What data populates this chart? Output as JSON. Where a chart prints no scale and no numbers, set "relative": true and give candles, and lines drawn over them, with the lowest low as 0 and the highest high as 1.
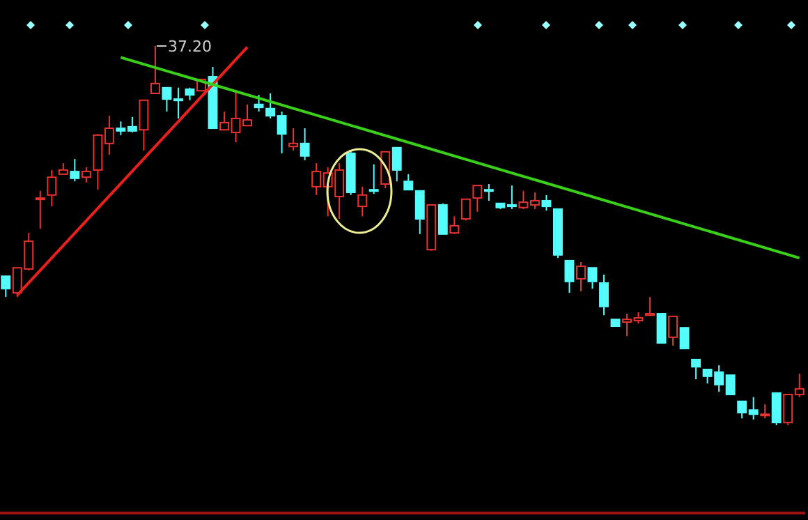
{
  "chart_data": {
    "type": "candlestick",
    "relative": true,
    "categories": [
      null,
      null,
      null,
      null,
      null,
      null,
      null,
      null,
      null,
      null,
      null,
      null,
      null,
      null,
      null,
      null,
      null,
      null,
      null,
      null,
      null,
      null,
      null,
      null,
      null,
      null,
      null,
      null,
      null,
      null,
      null,
      null,
      null,
      null,
      null,
      null,
      null,
      null,
      null,
      null,
      null,
      null,
      null,
      null,
      null,
      null,
      null,
      null,
      null,
      null,
      null,
      null,
      null,
      null,
      null,
      null,
      null,
      null,
      null,
      null,
      null,
      null,
      null,
      null,
      null,
      null,
      null,
      null,
      null,
      null
    ],
    "ohlc": [
      [
        0.393,
        0.393,
        0.338,
        0.36
      ],
      [
        0.349,
        0.415,
        0.338,
        0.415
      ],
      [
        0.412,
        0.507,
        0.408,
        0.485
      ],
      [
        0.596,
        0.618,
        0.518,
        0.599
      ],
      [
        0.607,
        0.673,
        0.577,
        0.654
      ],
      [
        0.662,
        0.691,
        0.662,
        0.673
      ],
      [
        0.669,
        0.702,
        0.643,
        0.651
      ],
      [
        0.654,
        0.68,
        0.64,
        0.669
      ],
      [
        0.673,
        0.768,
        0.621,
        0.765
      ],
      [
        0.743,
        0.816,
        0.713,
        0.783
      ],
      [
        0.783,
        0.801,
        0.765,
        0.776
      ],
      [
        0.787,
        0.813,
        0.772,
        0.776
      ],
      [
        0.779,
        0.857,
        0.724,
        0.857
      ],
      [
        0.875,
        1,
        0.875,
        0.901
      ],
      [
        0.89,
        0.89,
        0.827,
        0.86
      ],
      [
        0.86,
        0.89,
        0.809,
        0.857
      ],
      [
        0.886,
        0.89,
        0.857,
        0.871
      ],
      [
        0.882,
        0.912,
        0.882,
        0.912
      ],
      [
        0.919,
        0.945,
        0.783,
        0.783
      ],
      [
        0.779,
        0.827,
        0.779,
        0.798
      ],
      [
        0.772,
        0.882,
        0.746,
        0.809
      ],
      [
        0.79,
        0.846,
        0.79,
        0.805
      ],
      [
        0.846,
        0.871,
        0.827,
        0.838
      ],
      [
        0.835,
        0.875,
        0.809,
        0.816
      ],
      [
        0.816,
        0.827,
        0.717,
        0.768
      ],
      [
        0.735,
        0.783,
        0.724,
        0.743
      ],
      [
        0.743,
        0.783,
        0.699,
        0.71
      ],
      [
        0.629,
        0.691,
        0.607,
        0.669
      ],
      [
        0.629,
        0.68,
        0.551,
        0.665
      ],
      [
        0.603,
        0.691,
        0.544,
        0.673
      ],
      [
        0.717,
        0.724,
        0.607,
        0.614
      ],
      [
        0.577,
        0.629,
        0.551,
        0.607
      ],
      [
        0.621,
        0.688,
        0.61,
        0.618
      ],
      [
        0.636,
        0.721,
        0.625,
        0.721
      ],
      [
        0.732,
        0.732,
        0.643,
        0.673
      ],
      [
        0.643,
        0.662,
        0.621,
        0.621
      ],
      [
        0.618,
        0.618,
        0.504,
        0.544
      ],
      [
        0.463,
        0.581,
        0.46,
        0.581
      ],
      [
        0.581,
        0.585,
        0.504,
        0.504
      ],
      [
        0.507,
        0.551,
        0.504,
        0.526
      ],
      [
        0.544,
        0.596,
        0.54,
        0.596
      ],
      [
        0.599,
        0.632,
        0.563,
        0.632
      ],
      [
        0.621,
        0.636,
        0.592,
        0.618
      ],
      [
        0.585,
        0.585,
        0.57,
        0.574
      ],
      [
        0.581,
        0.632,
        0.57,
        0.577
      ],
      [
        0.574,
        0.618,
        0.57,
        0.588
      ],
      [
        0.581,
        0.614,
        0.57,
        0.592
      ],
      [
        0.592,
        0.607,
        0.566,
        0.577
      ],
      [
        0.57,
        0.57,
        0.441,
        0.449
      ],
      [
        0.434,
        0.434,
        0.349,
        0.379
      ],
      [
        0.386,
        0.43,
        0.353,
        0.419
      ],
      [
        0.415,
        0.415,
        0.36,
        0.379
      ],
      [
        0.375,
        0.397,
        0.29,
        0.313
      ],
      [
        0.279,
        0.279,
        0.261,
        0.261
      ],
      [
        0.272,
        0.294,
        0.235,
        0.279
      ],
      [
        0.276,
        0.298,
        0.268,
        0.283
      ],
      [
        0.29,
        0.338,
        0.29,
        0.294
      ],
      [
        0.294,
        0.294,
        0.217,
        0.217
      ],
      [
        0.232,
        0.287,
        0.21,
        0.287
      ],
      [
        0.257,
        0.257,
        0.202,
        0.202
      ],
      [
        0.173,
        0.173,
        0.121,
        0.154
      ],
      [
        0.147,
        0.147,
        0.11,
        0.129
      ],
      [
        0.14,
        0.158,
        0.088,
        0.107
      ],
      [
        0.132,
        0.132,
        0.081,
        0.081
      ],
      [
        0.063,
        0.063,
        0.018,
        0.033
      ],
      [
        0.04,
        0.074,
        0.015,
        0.029
      ],
      [
        0.026,
        0.055,
        0.018,
        0.029
      ],
      [
        0.085,
        0.085,
        0,
        0.007
      ],
      [
        0.007,
        0.081,
        0,
        0.081
      ],
      [
        0.081,
        0.136,
        0.074,
        0.096
      ]
    ],
    "colors": [
      "#54fcfc",
      "#e8322e",
      "#e8322e",
      "#e8322e",
      "#e8322e",
      "#e8322e",
      "#54fcfc",
      "#e8322e",
      "#e8322e",
      "#e8322e",
      "#54fcfc",
      "#54fcfc",
      "#e8322e",
      "#e8322e",
      "#54fcfc",
      "#54fcfc",
      "#54fcfc",
      "#e8322e",
      "#54fcfc",
      "#e8322e",
      "#e8322e",
      "#e8322e",
      "#54fcfc",
      "#54fcfc",
      "#54fcfc",
      "#e8322e",
      "#54fcfc",
      "#e8322e",
      "#e8322e",
      "#e8322e",
      "#54fcfc",
      "#e8322e",
      "#54fcfc",
      "#e8322e",
      "#54fcfc",
      "#54fcfc",
      "#54fcfc",
      "#e8322e",
      "#54fcfc",
      "#e8322e",
      "#e8322e",
      "#e8322e",
      "#54fcfc",
      "#54fcfc",
      "#54fcfc",
      "#e8322e",
      "#e8322e",
      "#54fcfc",
      "#54fcfc",
      "#54fcfc",
      "#e8322e",
      "#54fcfc",
      "#54fcfc",
      "#54fcfc",
      "#e8322e",
      "#e8322e",
      "#e8322e",
      "#54fcfc",
      "#e8322e",
      "#54fcfc",
      "#54fcfc",
      "#54fcfc",
      "#54fcfc",
      "#54fcfc",
      "#54fcfc",
      "#54fcfc",
      "#e8322e",
      "#54fcfc",
      "#e8322e",
      "#e8322e"
    ],
    "series": [
      {
        "type": "line",
        "values": [
          null,
          0.343,
          null,
          null,
          null,
          null,
          null,
          null,
          null,
          null,
          null,
          null,
          null,
          null,
          null,
          null,
          null,
          null,
          null,
          null,
          null,
          0.997,
          null,
          null,
          null,
          null,
          null,
          null,
          null,
          null,
          null,
          null,
          null,
          null,
          null,
          null,
          null,
          null,
          null,
          null,
          null,
          null,
          null,
          null,
          null,
          null,
          null,
          null,
          null,
          null,
          null,
          null,
          null,
          null,
          null,
          null,
          null,
          null,
          null,
          null,
          null,
          null,
          null,
          null,
          null,
          null,
          null,
          null,
          null,
          null
        ],
        "color": "#e8201e"
      },
      {
        "type": "line",
        "values": [
          null,
          null,
          null,
          null,
          null,
          null,
          null,
          null,
          null,
          null,
          0.97,
          null,
          null,
          null,
          null,
          null,
          null,
          null,
          null,
          null,
          null,
          null,
          null,
          null,
          null,
          null,
          null,
          null,
          null,
          null,
          null,
          null,
          null,
          null,
          null,
          null,
          null,
          null,
          null,
          null,
          null,
          null,
          null,
          null,
          null,
          null,
          null,
          null,
          null,
          null,
          null,
          null,
          null,
          null,
          null,
          null,
          null,
          null,
          null,
          null,
          null,
          null,
          null,
          null,
          null,
          null,
          null,
          null,
          null,
          0.441
        ],
        "color": "#3ad01a"
      }
    ],
    "annotations": [
      "37.20"
    ]
  }
}
